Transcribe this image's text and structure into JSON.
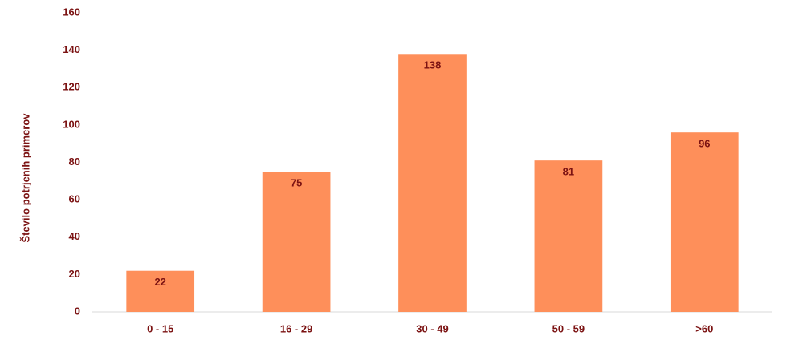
{
  "chart_data": {
    "type": "bar",
    "y_label": "Število potrjenih primerov",
    "categories": [
      "0 - 15",
      "16 - 29",
      "30 - 49",
      "50 - 59",
      ">60"
    ],
    "values": [
      22,
      75,
      138,
      81,
      96
    ],
    "color": "#fe8f5a",
    "ylim": [
      0,
      160
    ],
    "yticks": [
      0,
      20,
      40,
      60,
      80,
      100,
      120,
      140,
      160
    ],
    "grid": false,
    "data_labels": true
  }
}
